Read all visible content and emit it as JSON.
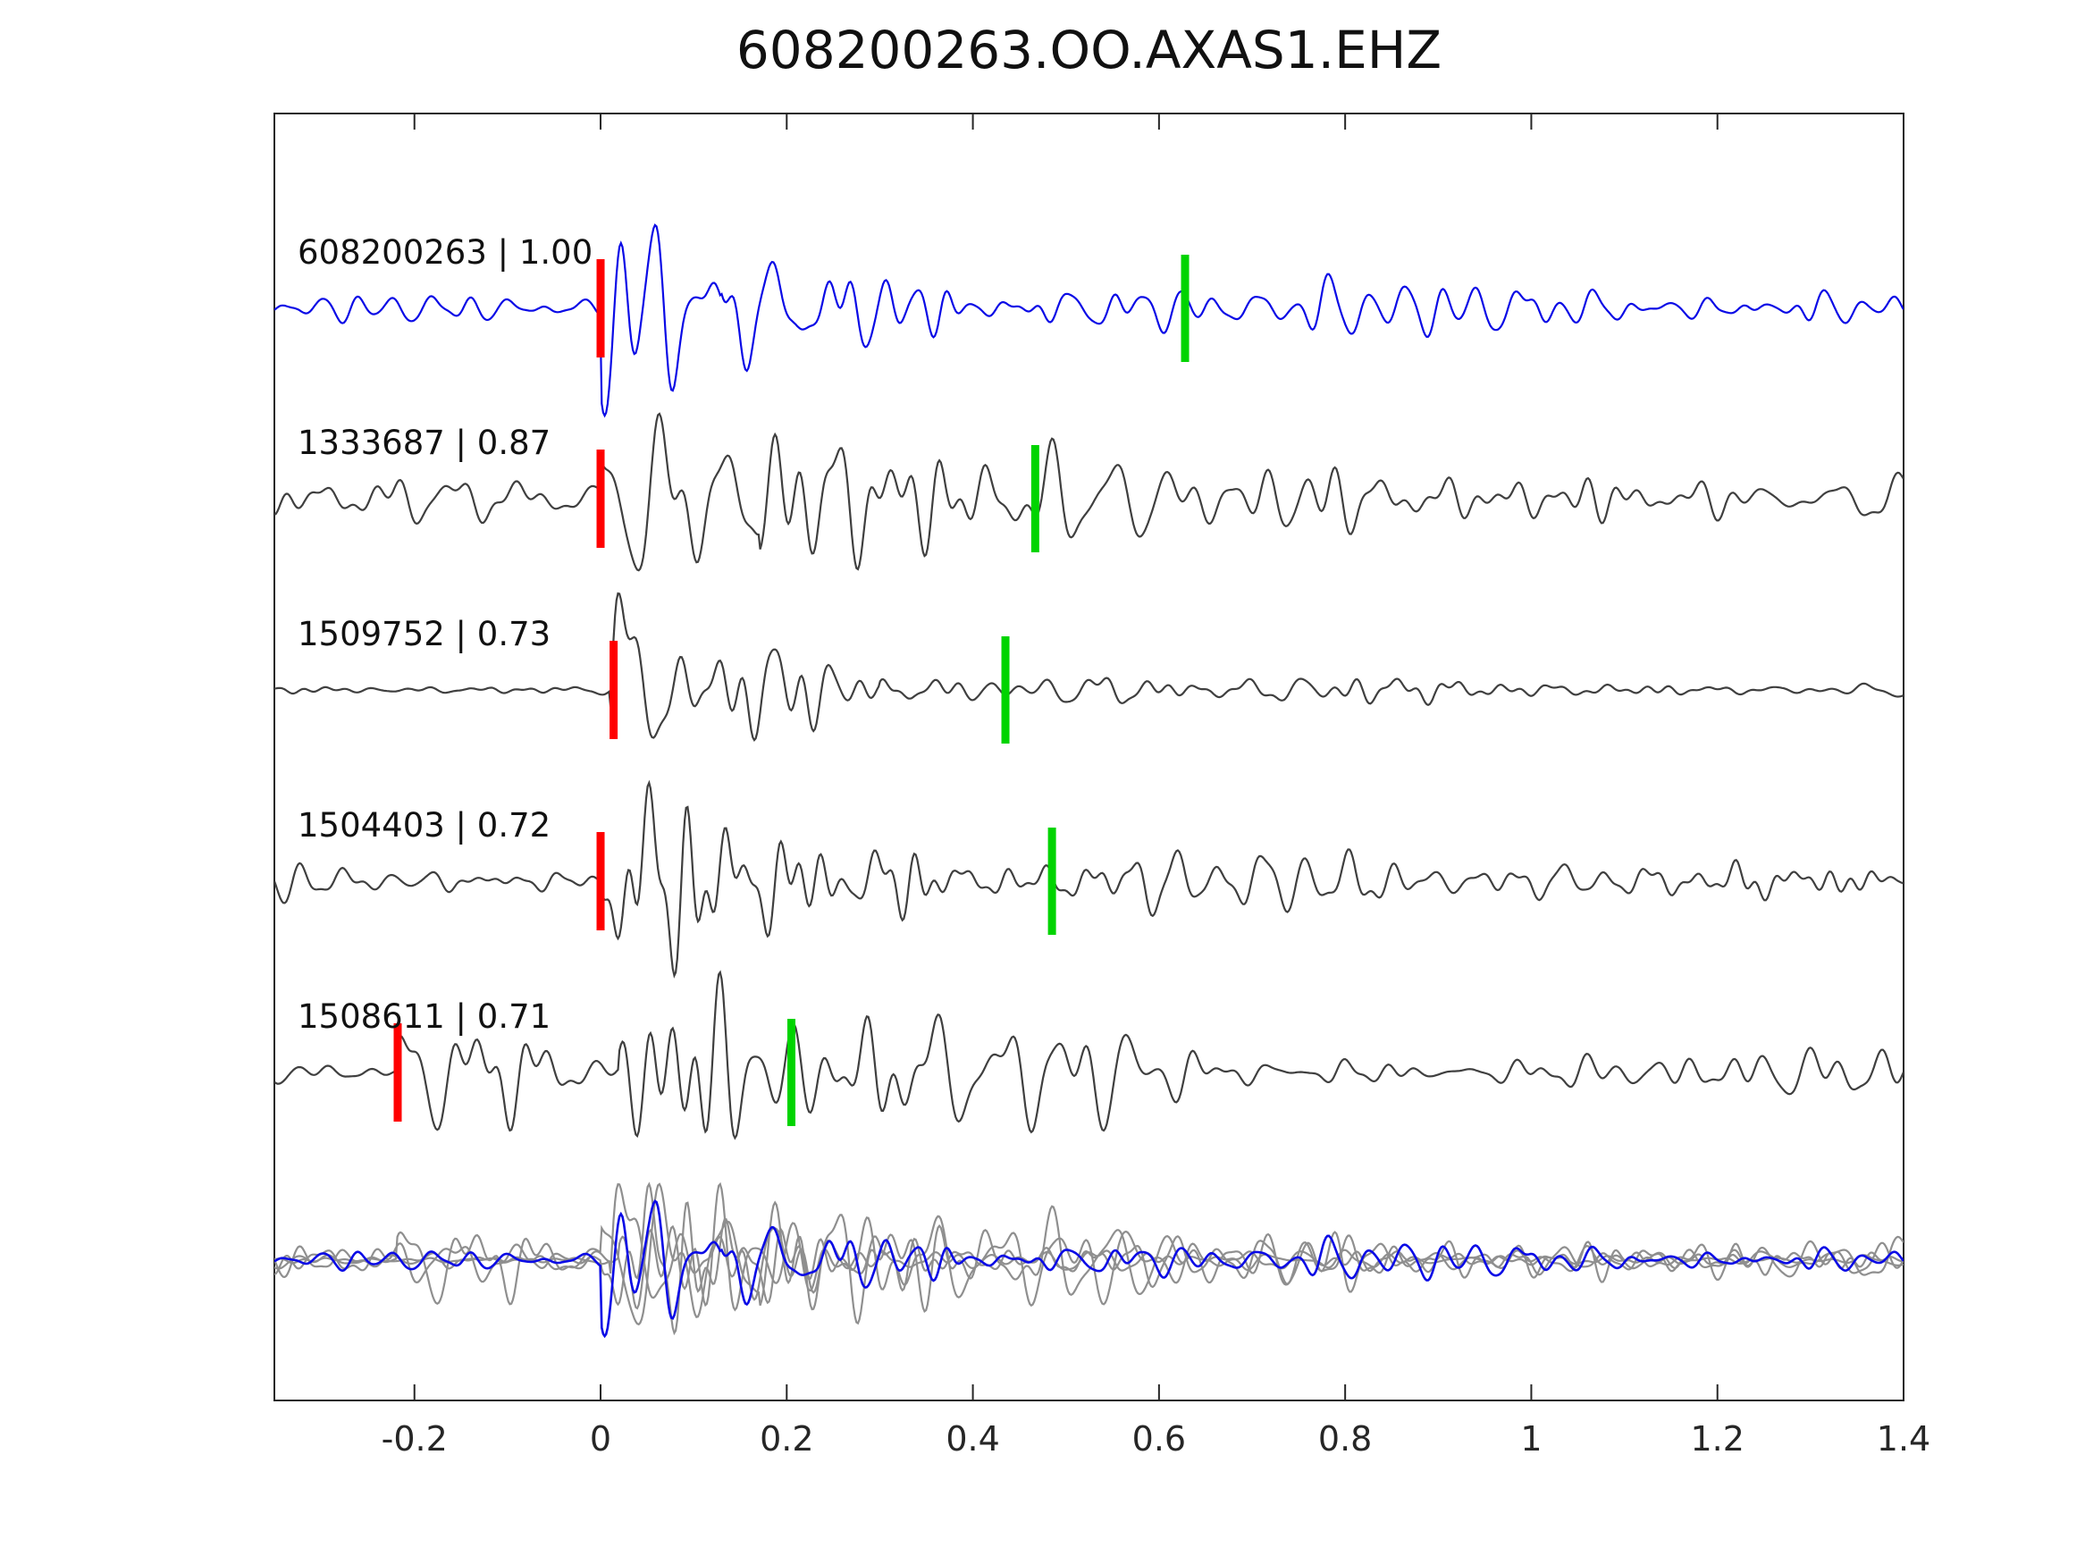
{
  "chart_data": {
    "type": "line",
    "kind_note": "seismogram waveform similarity plot",
    "title": "608200263.OO.AXAS1.EHZ",
    "x_range": [
      -0.3505,
      1.4
    ],
    "x_ticks": [
      {
        "value": -0.2,
        "label": "-0.2"
      },
      {
        "value": 0,
        "label": "0"
      },
      {
        "value": 0.2,
        "label": "0.2"
      },
      {
        "value": 0.4,
        "label": "0.4"
      },
      {
        "value": 0.6,
        "label": "0.6"
      },
      {
        "value": 0.8,
        "label": "0.8"
      },
      {
        "value": 1,
        "label": "1"
      },
      {
        "value": 1.2,
        "label": "1.2"
      },
      {
        "value": 1.4,
        "label": "1.4"
      }
    ],
    "pick_colors": {
      "red_pick": "#ff0000",
      "green_pick": "#00d400"
    },
    "gray_trace_color": "#3f3f3f",
    "overlay_gray_color": "#8f8f8f",
    "axis_color": "#262626",
    "traces": [
      {
        "id": "608200263",
        "similarity": "1.00",
        "label": "608200263 | 1.00",
        "color": "#0a0ae6",
        "red_pick": 0.0,
        "green_pick": 0.628,
        "seed": 11,
        "onset": 0.0,
        "pre": 0.13,
        "coda": 0.2,
        "coda_tau": 1.1,
        "bursts": [
          [
            0.0,
            1.0,
            0.09
          ],
          [
            0.13,
            0.3,
            0.15
          ]
        ]
      },
      {
        "id": "1333687",
        "similarity": "0.87",
        "label": "1333687 | 0.87",
        "color": "#3f3f3f",
        "red_pick": 0.0,
        "green_pick": 0.467,
        "seed": 22,
        "onset": 0.0,
        "pre": 0.38,
        "coda": 0.35,
        "coda_tau": 2.5,
        "bursts": [
          [
            0.0,
            0.9,
            0.13
          ],
          [
            0.17,
            0.45,
            0.12
          ]
        ]
      },
      {
        "id": "1509752",
        "similarity": "0.73",
        "label": "1509752 | 0.73",
        "color": "#3f3f3f",
        "red_pick": 0.014,
        "green_pick": 0.435,
        "seed": 33,
        "onset": 0.01,
        "pre": 0.035,
        "coda": 0.12,
        "coda_tau": 0.9,
        "bursts": [
          [
            0.01,
            1.0,
            0.12
          ],
          [
            0.3,
            0.12,
            0.2
          ]
        ]
      },
      {
        "id": "1504403",
        "similarity": "0.72",
        "label": "1504403 | 0.72",
        "color": "#3f3f3f",
        "red_pick": 0.0,
        "green_pick": 0.485,
        "seed": 44,
        "onset": 0.0,
        "pre": 0.1,
        "coda": 0.14,
        "coda_tau": 1.2,
        "bursts": [
          [
            0.0,
            1.0,
            0.11
          ]
        ]
      },
      {
        "id": "1508611",
        "similarity": "0.71",
        "label": "1508611 | 0.71",
        "color": "#3f3f3f",
        "red_pick": -0.218,
        "green_pick": 0.205,
        "seed": 55,
        "onset": -0.22,
        "pre": 0.05,
        "coda": 0.16,
        "coda_tau": 1.4,
        "bursts": [
          [
            -0.22,
            0.55,
            0.1
          ],
          [
            0.02,
            1.0,
            0.16
          ]
        ]
      }
    ],
    "overlay": {
      "members_gray": [
        1,
        2,
        3,
        4
      ],
      "member_blue": 0
    }
  }
}
